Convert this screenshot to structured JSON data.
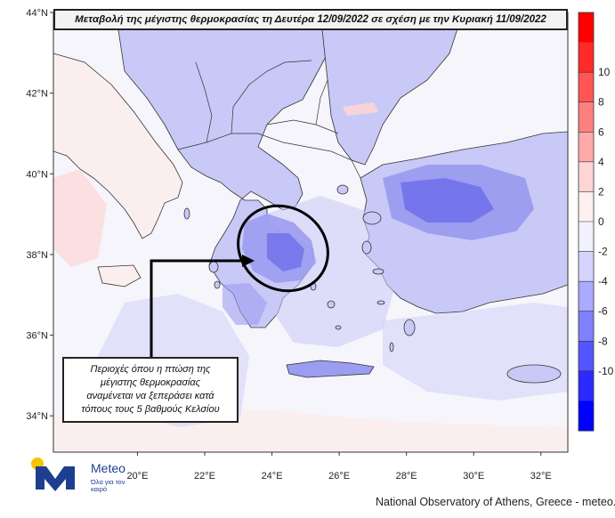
{
  "title": "Μεταβολή της μέγιστης θερμοκρασίας τη Δευτέρα 12/09/2022 σε σχέση με την Κυριακή 11/09/2022",
  "annotation": {
    "lines": [
      "Περιοχές όπου η πτώση της",
      "μέγιστης θερμοκρασίας",
      "αναμένεται να ξεπεράσει κατά",
      "τόπους τους 5 βαθμούς Κελσίου"
    ]
  },
  "axes": {
    "lat_ticks": [
      {
        "value": 44,
        "label": "44°N"
      },
      {
        "value": 42,
        "label": "42°N"
      },
      {
        "value": 40,
        "label": "40°N"
      },
      {
        "value": 38,
        "label": "38°N"
      },
      {
        "value": 36,
        "label": "36°N"
      },
      {
        "value": 34,
        "label": "34°N"
      }
    ],
    "lon_ticks": [
      {
        "value": 20,
        "label": "20°E"
      },
      {
        "value": 22,
        "label": "22°E"
      },
      {
        "value": 24,
        "label": "24°E"
      },
      {
        "value": 26,
        "label": "26°E"
      },
      {
        "value": 28,
        "label": "28°E"
      },
      {
        "value": 30,
        "label": "30°E"
      },
      {
        "value": 32,
        "label": "32°E"
      }
    ],
    "lon_range": [
      17.5,
      32.8
    ],
    "lat_range": [
      33.1,
      44.0
    ]
  },
  "colorbar": {
    "labels": [
      "10",
      "8",
      "6",
      "4",
      "2",
      "0",
      "-2",
      "-4",
      "-6",
      "-8",
      "-10"
    ],
    "colors": [
      "#ff0000",
      "#ff2a2a",
      "#ff5555",
      "#ff8080",
      "#ffaaaa",
      "#ffd4d4",
      "#fff0f0",
      "#f2f2ff",
      "#d4d4ff",
      "#aaaaff",
      "#8080ff",
      "#5555ff",
      "#2a2aff",
      "#0000ff"
    ]
  },
  "map_colors": {
    "sea_background": "#f5f5fb",
    "land_neutral": "#fbeeee",
    "light_decrease": "#c9c9f7",
    "moderate_decrease": "#9c9cf0",
    "strong_decrease": "#6f6feb",
    "slight_increase": "#fdd5d5"
  },
  "logo": {
    "name": "Meteo",
    "tagline": "Όλα για τον καιρό",
    "sun_color": "#f5c400",
    "mark_color": "#1e3f8f"
  },
  "credit": "National Observatory of Athens, Greece - meteo.gr"
}
